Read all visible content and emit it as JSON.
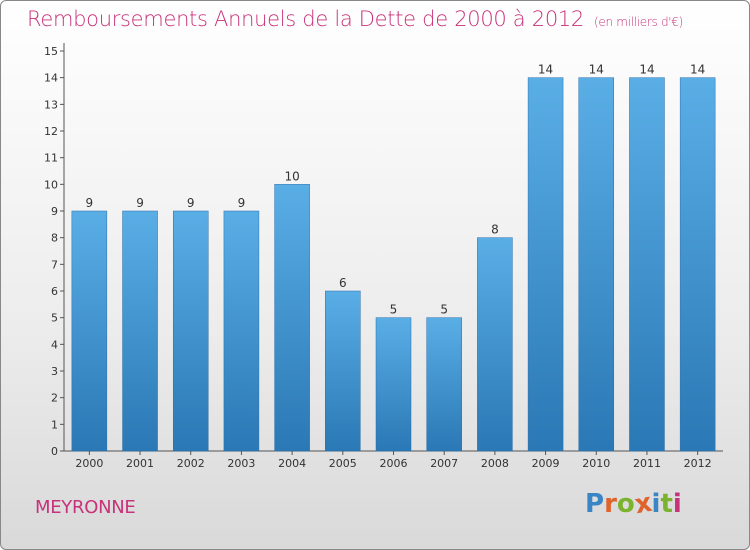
{
  "header": {
    "title": "Remboursements Annuels de la Dette de 2000 à 2012",
    "unit": "(en milliers d'€)"
  },
  "footer": {
    "commune": "MEYRONNE",
    "logo": "Proxiti"
  },
  "colors": {
    "bar_top": "#5aaee6",
    "bar_bottom": "#2a78b5",
    "title": "#c8327a",
    "logo": [
      "#3a85c6",
      "#e0632b",
      "#7bb32e",
      "#e0632b",
      "#3a85c6",
      "#7bb32e",
      "#c8327a"
    ]
  },
  "chart_data": {
    "type": "bar",
    "categories": [
      "2000",
      "2001",
      "2002",
      "2003",
      "2004",
      "2005",
      "2006",
      "2007",
      "2008",
      "2009",
      "2010",
      "2011",
      "2012"
    ],
    "values": [
      9,
      9,
      9,
      9,
      10,
      6,
      5,
      5,
      8,
      14,
      14,
      14,
      14
    ],
    "data_labels": [
      "9",
      "9",
      "9",
      "9",
      "10",
      "6",
      "5",
      "5",
      "8",
      "14",
      "14",
      "14",
      "14"
    ],
    "y_ticks": [
      "0",
      "1",
      "2",
      "3",
      "4",
      "5",
      "6",
      "7",
      "8",
      "9",
      "10",
      "11",
      "12",
      "13",
      "14",
      "15"
    ],
    "ylim": [
      0,
      15
    ],
    "grid": false,
    "legend": "none"
  }
}
